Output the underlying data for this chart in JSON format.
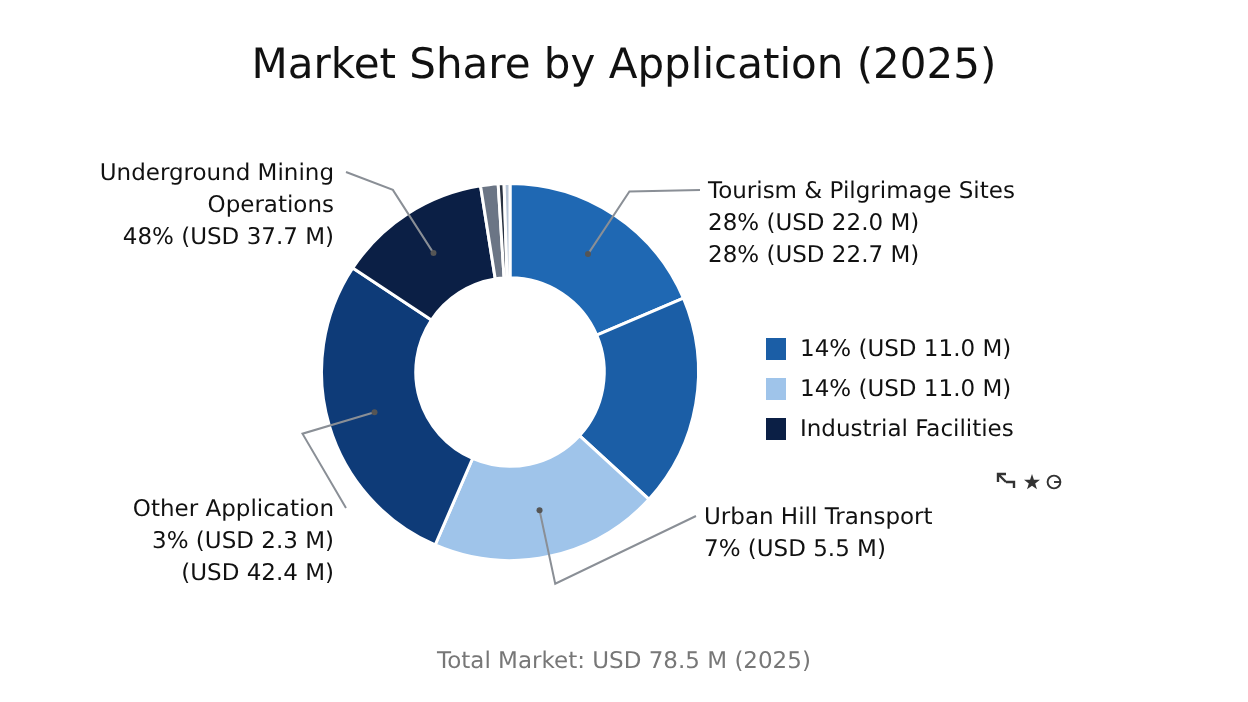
{
  "chart_data": {
    "type": "donut",
    "title": "Market Share by Application (2025)",
    "categories": [
      null,
      "14% (USD 11.0 M)",
      "14% (USD 11.0 M)",
      null,
      "Industrial Facilities",
      null,
      null,
      null
    ],
    "values": [
      18.6,
      18.2,
      19.7,
      27.8,
      13.2,
      1.5,
      0.5,
      0.5
    ],
    "colors": [
      "#1f68b3",
      "#1b5ea6",
      "#9fc4ea",
      "#0e3b78",
      "#0b1f45",
      "#6b7585",
      "#2a3342",
      "#b8c6d8"
    ],
    "legend": "right",
    "annotations": [
      "Underground Mining\nOperations\n48% (USD 37.7 M)",
      "Tourism & Pilgrimage Sites\n28% (USD 22.0 M)\n28% (USD 22.7 M)",
      "Urban Hill Transport\n7% (USD 5.5 M)",
      "Other Application\n3% (USD 2.3 M)\n(USD 42.4 M)",
      "Total Market: USD 78.5 M (2025)"
    ]
  }
}
